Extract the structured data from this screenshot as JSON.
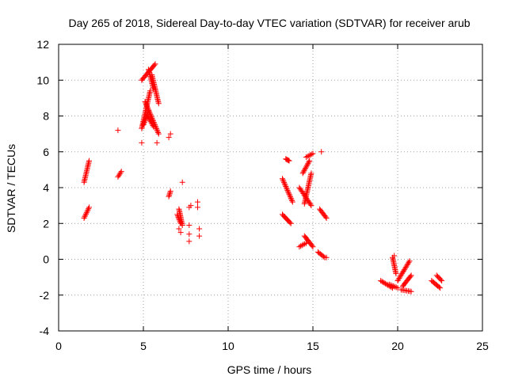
{
  "chart_data": {
    "type": "scatter",
    "title": "Day 265 of 2018, Sidereal Day-to-day VTEC variation (SDTVAR) for receiver arub",
    "xlabel": "GPS time / hours",
    "ylabel": "SDTVAR / TECUs",
    "xlim": [
      0,
      25
    ],
    "ylim": [
      -4,
      12
    ],
    "xticks": [
      "0",
      "5",
      "10",
      "15",
      "20",
      "25"
    ],
    "yticks": [
      "-4",
      "-2",
      "0",
      "2",
      "4",
      "6",
      "8",
      "10",
      "12"
    ],
    "grid": true,
    "marker": "+",
    "colors": {
      "points": "#ff0000",
      "axis": "#000000",
      "grid": "#a0a0a0"
    },
    "series": [
      {
        "name": "SDTVAR",
        "segments": [
          {
            "x": [
              1.5,
              1.8
            ],
            "y": [
              4.3,
              5.5
            ]
          },
          {
            "x": [
              1.5,
              1.8
            ],
            "y": [
              2.3,
              2.9
            ]
          },
          {
            "x": [
              3.5,
              3.7
            ],
            "y": [
              4.6,
              4.9
            ]
          },
          {
            "x": [
              4.9,
              5.7
            ],
            "y": [
              10.0,
              10.9
            ]
          },
          {
            "x": [
              5.3,
              5.6
            ],
            "y": [
              10.6,
              9.5
            ]
          },
          {
            "x": [
              5.5,
              5.9
            ],
            "y": [
              10.3,
              8.7
            ]
          },
          {
            "x": [
              4.9,
              5.4
            ],
            "y": [
              7.3,
              9.4
            ]
          },
          {
            "x": [
              5.0,
              5.3
            ],
            "y": [
              7.5,
              8.3
            ]
          },
          {
            "x": [
              5.1,
              5.9
            ],
            "y": [
              8.8,
              7.0
            ]
          },
          {
            "x": [
              5.2,
              5.6
            ],
            "y": [
              8.1,
              7.4
            ]
          },
          {
            "x": [
              6.5,
              6.6
            ],
            "y": [
              3.5,
              3.8
            ]
          },
          {
            "x": [
              7.0,
              7.2
            ],
            "y": [
              2.5,
              2.0
            ]
          },
          {
            "x": [
              7.1,
              7.3
            ],
            "y": [
              2.8,
              1.9
            ]
          },
          {
            "x": [
              13.2,
              13.7
            ],
            "y": [
              2.5,
              2.0
            ]
          },
          {
            "x": [
              13.2,
              13.8
            ],
            "y": [
              4.5,
              3.2
            ]
          },
          {
            "x": [
              13.4,
              13.6
            ],
            "y": [
              5.6,
              5.5
            ]
          },
          {
            "x": [
              14.2,
              14.9
            ],
            "y": [
              4.0,
              3.0
            ]
          },
          {
            "x": [
              14.4,
              14.8
            ],
            "y": [
              4.8,
              5.5
            ]
          },
          {
            "x": [
              14.5,
              14.9
            ],
            "y": [
              3.1,
              4.8
            ]
          },
          {
            "x": [
              14.5,
              15.0
            ],
            "y": [
              1.3,
              0.7
            ]
          },
          {
            "x": [
              14.2,
              14.6
            ],
            "y": [
              0.7,
              0.9
            ]
          },
          {
            "x": [
              14.6,
              15.0
            ],
            "y": [
              5.7,
              5.9
            ]
          },
          {
            "x": [
              15.3,
              15.7
            ],
            "y": [
              0.4,
              0.1
            ]
          },
          {
            "x": [
              15.4,
              15.8
            ],
            "y": [
              2.8,
              2.3
            ]
          },
          {
            "x": [
              19.0,
              19.7
            ],
            "y": [
              -1.2,
              -1.6
            ]
          },
          {
            "x": [
              19.5,
              20.0
            ],
            "y": [
              -1.4,
              -1.6
            ]
          },
          {
            "x": [
              19.7,
              19.9
            ],
            "y": [
              0.1,
              -0.8
            ]
          },
          {
            "x": [
              20.0,
              20.7
            ],
            "y": [
              -1.2,
              -0.1
            ]
          },
          {
            "x": [
              20.2,
              20.8
            ],
            "y": [
              -1.7,
              -1.8
            ]
          },
          {
            "x": [
              20.3,
              20.8
            ],
            "y": [
              -1.5,
              -0.9
            ]
          },
          {
            "x": [
              22.0,
              22.5
            ],
            "y": [
              -1.2,
              -1.6
            ]
          },
          {
            "x": [
              22.3,
              22.6
            ],
            "y": [
              -0.9,
              -1.2
            ]
          }
        ],
        "points": [
          [
            3.5,
            7.2
          ],
          [
            4.9,
            6.5
          ],
          [
            5.8,
            6.5
          ],
          [
            6.5,
            6.8
          ],
          [
            6.6,
            7.0
          ],
          [
            7.3,
            4.3
          ],
          [
            7.1,
            1.7
          ],
          [
            7.2,
            1.5
          ],
          [
            7.7,
            1.9
          ],
          [
            7.7,
            1.4
          ],
          [
            7.7,
            1.0
          ],
          [
            7.7,
            2.9
          ],
          [
            7.8,
            3.0
          ],
          [
            8.2,
            2.9
          ],
          [
            8.2,
            3.2
          ],
          [
            8.3,
            1.7
          ],
          [
            8.3,
            1.3
          ],
          [
            15.5,
            6.0
          ],
          [
            15.8,
            0.1
          ],
          [
            19.8,
            0.2
          ]
        ]
      }
    ]
  }
}
